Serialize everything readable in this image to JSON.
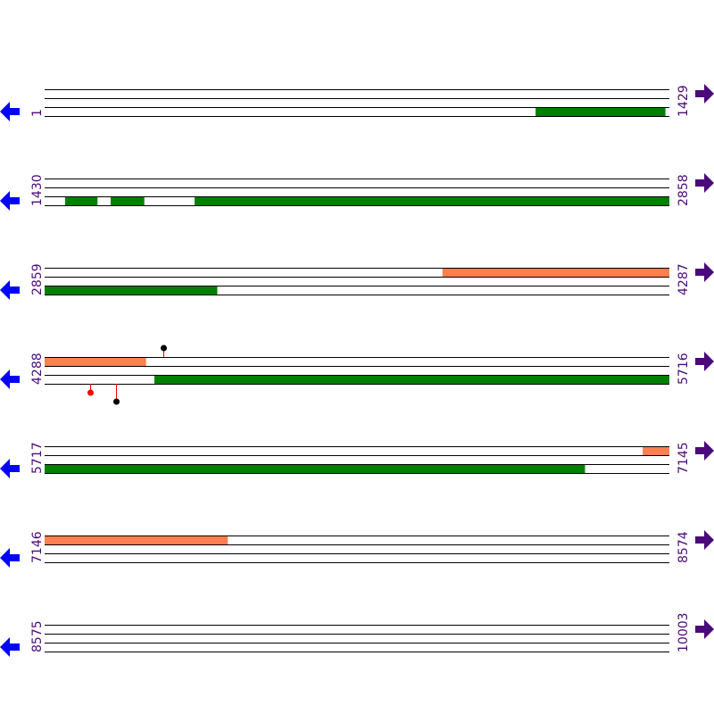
{
  "colors": {
    "track_line": "#000000",
    "green_feature": "#008000",
    "orange_feature": "#ff7f50",
    "left_arrow": "#0000ff",
    "right_arrow": "#4b0a7a",
    "label": "#4b0a7a",
    "lollipop_red": "#ff0000",
    "lollipop_black": "#000000"
  },
  "icons": {
    "left": "arrow-left-icon",
    "right": "arrow-right-icon"
  },
  "rows": [
    {
      "start": "1",
      "end": "1429",
      "features": [
        {
          "track": "bottom",
          "color": "green",
          "from": 1124,
          "to": 1420
        }
      ],
      "lollipops": []
    },
    {
      "start": "1430",
      "end": "2858",
      "features": [
        {
          "track": "bottom",
          "color": "green",
          "from": 1477,
          "to": 1550
        },
        {
          "track": "bottom",
          "color": "green",
          "from": 1581,
          "to": 1657
        },
        {
          "track": "bottom",
          "color": "green",
          "from": 1773,
          "to": 2858
        }
      ],
      "lollipops": []
    },
    {
      "start": "2859",
      "end": "4287",
      "features": [
        {
          "track": "top",
          "color": "orange",
          "from": 3769,
          "to": 4287
        },
        {
          "track": "bottom",
          "color": "green",
          "from": 2859,
          "to": 3253
        }
      ],
      "lollipops": []
    },
    {
      "start": "4288",
      "end": "5716",
      "features": [
        {
          "track": "top",
          "color": "orange",
          "from": 4288,
          "to": 4519
        },
        {
          "track": "bottom",
          "color": "green",
          "from": 4539,
          "to": 5716
        }
      ],
      "lollipops": [
        {
          "pos": 4560,
          "side": "up",
          "length": "short",
          "color": "black"
        },
        {
          "pos": 4392,
          "side": "down",
          "length": "short",
          "color": "red"
        },
        {
          "pos": 4451,
          "side": "down",
          "length": "long",
          "color": "black"
        }
      ]
    },
    {
      "start": "5717",
      "end": "7145",
      "features": [
        {
          "track": "top",
          "color": "orange",
          "from": 7085,
          "to": 7145
        },
        {
          "track": "bottom",
          "color": "green",
          "from": 5717,
          "to": 6952
        }
      ],
      "lollipops": []
    },
    {
      "start": "7146",
      "end": "8574",
      "features": [
        {
          "track": "top",
          "color": "orange",
          "from": 7146,
          "to": 7564
        }
      ],
      "lollipops": []
    },
    {
      "start": "8575",
      "end": "10003",
      "features": [],
      "lollipops": []
    }
  ]
}
